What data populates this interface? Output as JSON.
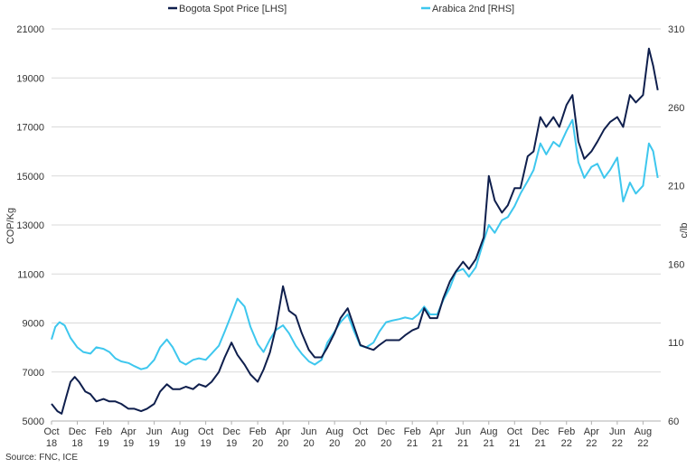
{
  "chart_data": {
    "type": "line",
    "xlabel": "",
    "ylabel_left": "COP/Kg",
    "ylabel_right": "c/lb",
    "ylim_left": [
      5000,
      21000
    ],
    "ylim_right": [
      60,
      310
    ],
    "yticks_left": [
      5000,
      7000,
      9000,
      11000,
      13000,
      15000,
      17000,
      19000,
      21000
    ],
    "yticks_right": [
      60,
      110,
      160,
      210,
      260,
      310
    ],
    "xticks": [
      {
        "m": "Oct",
        "y": "18"
      },
      {
        "m": "Dec",
        "y": "18"
      },
      {
        "m": "Feb",
        "y": "19"
      },
      {
        "m": "Apr",
        "y": "19"
      },
      {
        "m": "Jun",
        "y": "19"
      },
      {
        "m": "Aug",
        "y": "19"
      },
      {
        "m": "Oct",
        "y": "19"
      },
      {
        "m": "Dec",
        "y": "19"
      },
      {
        "m": "Feb",
        "y": "20"
      },
      {
        "m": "Apr",
        "y": "20"
      },
      {
        "m": "Jun",
        "y": "20"
      },
      {
        "m": "Aug",
        "y": "20"
      },
      {
        "m": "Oct",
        "y": "20"
      },
      {
        "m": "Dec",
        "y": "20"
      },
      {
        "m": "Feb",
        "y": "21"
      },
      {
        "m": "Apr",
        "y": "21"
      },
      {
        "m": "Jun",
        "y": "21"
      },
      {
        "m": "Aug",
        "y": "21"
      },
      {
        "m": "Oct",
        "y": "21"
      },
      {
        "m": "Dec",
        "y": "21"
      },
      {
        "m": "Feb",
        "y": "22"
      },
      {
        "m": "Apr",
        "y": "22"
      },
      {
        "m": "Jun",
        "y": "22"
      },
      {
        "m": "Aug",
        "y": "22"
      }
    ],
    "grid": true,
    "legend_position": "top-center",
    "series": [
      {
        "name": "Bogota Spot Price [LHS]",
        "axis": "left",
        "color": "#0f1f4d",
        "points": [
          [
            "2018-10-01",
            5700
          ],
          [
            "2018-10-15",
            5400
          ],
          [
            "2018-10-25",
            5300
          ],
          [
            "2018-11-05",
            6000
          ],
          [
            "2018-11-15",
            6600
          ],
          [
            "2018-11-25",
            6800
          ],
          [
            "2018-12-05",
            6600
          ],
          [
            "2018-12-20",
            6200
          ],
          [
            "2019-01-01",
            6100
          ],
          [
            "2019-01-15",
            5800
          ],
          [
            "2019-02-01",
            5900
          ],
          [
            "2019-02-15",
            5800
          ],
          [
            "2019-03-01",
            5800
          ],
          [
            "2019-03-15",
            5700
          ],
          [
            "2019-04-01",
            5500
          ],
          [
            "2019-04-15",
            5500
          ],
          [
            "2019-05-01",
            5400
          ],
          [
            "2019-05-15",
            5500
          ],
          [
            "2019-06-01",
            5700
          ],
          [
            "2019-06-15",
            6200
          ],
          [
            "2019-07-01",
            6500
          ],
          [
            "2019-07-15",
            6300
          ],
          [
            "2019-08-01",
            6300
          ],
          [
            "2019-08-15",
            6400
          ],
          [
            "2019-09-01",
            6300
          ],
          [
            "2019-09-15",
            6500
          ],
          [
            "2019-10-01",
            6400
          ],
          [
            "2019-10-15",
            6600
          ],
          [
            "2019-11-01",
            7000
          ],
          [
            "2019-11-15",
            7600
          ],
          [
            "2019-12-01",
            8200
          ],
          [
            "2019-12-15",
            7700
          ],
          [
            "2020-01-01",
            7300
          ],
          [
            "2020-01-15",
            6900
          ],
          [
            "2020-02-01",
            6600
          ],
          [
            "2020-02-15",
            7100
          ],
          [
            "2020-03-01",
            7800
          ],
          [
            "2020-03-15",
            8800
          ],
          [
            "2020-04-01",
            10500
          ],
          [
            "2020-04-15",
            9500
          ],
          [
            "2020-05-01",
            9300
          ],
          [
            "2020-05-15",
            8600
          ],
          [
            "2020-06-01",
            7900
          ],
          [
            "2020-06-15",
            7600
          ],
          [
            "2020-07-01",
            7600
          ],
          [
            "2020-07-15",
            8000
          ],
          [
            "2020-08-01",
            8600
          ],
          [
            "2020-08-15",
            9200
          ],
          [
            "2020-09-01",
            9600
          ],
          [
            "2020-09-15",
            8900
          ],
          [
            "2020-10-01",
            8100
          ],
          [
            "2020-10-15",
            8000
          ],
          [
            "2020-11-01",
            7900
          ],
          [
            "2020-11-15",
            8100
          ],
          [
            "2020-12-01",
            8300
          ],
          [
            "2020-12-15",
            8300
          ],
          [
            "2021-01-01",
            8300
          ],
          [
            "2021-01-15",
            8500
          ],
          [
            "2021-02-01",
            8700
          ],
          [
            "2021-02-15",
            8800
          ],
          [
            "2021-03-01",
            9600
          ],
          [
            "2021-03-15",
            9200
          ],
          [
            "2021-04-01",
            9200
          ],
          [
            "2021-04-15",
            10000
          ],
          [
            "2021-05-01",
            10700
          ],
          [
            "2021-05-15",
            11100
          ],
          [
            "2021-06-01",
            11500
          ],
          [
            "2021-06-15",
            11200
          ],
          [
            "2021-07-01",
            11600
          ],
          [
            "2021-07-20",
            12500
          ],
          [
            "2021-08-01",
            15000
          ],
          [
            "2021-08-15",
            14000
          ],
          [
            "2021-09-01",
            13500
          ],
          [
            "2021-09-15",
            13800
          ],
          [
            "2021-10-01",
            14500
          ],
          [
            "2021-10-15",
            14500
          ],
          [
            "2021-11-01",
            15800
          ],
          [
            "2021-11-15",
            16000
          ],
          [
            "2021-12-01",
            17400
          ],
          [
            "2021-12-15",
            17000
          ],
          [
            "2022-01-01",
            17400
          ],
          [
            "2022-01-15",
            17000
          ],
          [
            "2022-02-01",
            17900
          ],
          [
            "2022-02-15",
            18300
          ],
          [
            "2022-03-01",
            16400
          ],
          [
            "2022-03-15",
            15700
          ],
          [
            "2022-04-01",
            16000
          ],
          [
            "2022-04-15",
            16400
          ],
          [
            "2022-05-01",
            16900
          ],
          [
            "2022-05-15",
            17200
          ],
          [
            "2022-06-01",
            17400
          ],
          [
            "2022-06-15",
            17000
          ],
          [
            "2022-07-01",
            18300
          ],
          [
            "2022-07-15",
            18000
          ],
          [
            "2022-08-01",
            18300
          ],
          [
            "2022-08-15",
            20200
          ],
          [
            "2022-08-25",
            19500
          ],
          [
            "2022-09-05",
            18500
          ]
        ]
      },
      {
        "name": "Arabica 2nd [RHS]",
        "axis": "right",
        "color": "#3ec7ee",
        "points": [
          [
            "2018-10-01",
            112
          ],
          [
            "2018-10-10",
            120
          ],
          [
            "2018-10-20",
            123
          ],
          [
            "2018-11-01",
            121
          ],
          [
            "2018-11-15",
            113
          ],
          [
            "2018-12-01",
            107
          ],
          [
            "2018-12-15",
            104
          ],
          [
            "2019-01-01",
            103
          ],
          [
            "2019-01-15",
            107
          ],
          [
            "2019-02-01",
            106
          ],
          [
            "2019-02-15",
            104
          ],
          [
            "2019-03-01",
            100
          ],
          [
            "2019-03-15",
            98
          ],
          [
            "2019-04-01",
            97
          ],
          [
            "2019-04-15",
            95
          ],
          [
            "2019-05-01",
            93
          ],
          [
            "2019-05-15",
            94
          ],
          [
            "2019-06-01",
            99
          ],
          [
            "2019-06-15",
            107
          ],
          [
            "2019-07-01",
            112
          ],
          [
            "2019-07-15",
            107
          ],
          [
            "2019-08-01",
            98
          ],
          [
            "2019-08-15",
            96
          ],
          [
            "2019-09-01",
            99
          ],
          [
            "2019-09-15",
            100
          ],
          [
            "2019-10-01",
            99
          ],
          [
            "2019-10-15",
            103
          ],
          [
            "2019-11-01",
            108
          ],
          [
            "2019-11-15",
            117
          ],
          [
            "2019-12-01",
            128
          ],
          [
            "2019-12-15",
            138
          ],
          [
            "2020-01-01",
            133
          ],
          [
            "2020-01-15",
            120
          ],
          [
            "2020-02-01",
            109
          ],
          [
            "2020-02-15",
            104
          ],
          [
            "2020-03-01",
            112
          ],
          [
            "2020-03-15",
            118
          ],
          [
            "2020-04-01",
            121
          ],
          [
            "2020-04-15",
            116
          ],
          [
            "2020-05-01",
            108
          ],
          [
            "2020-05-15",
            103
          ],
          [
            "2020-06-01",
            98
          ],
          [
            "2020-06-15",
            96
          ],
          [
            "2020-07-01",
            99
          ],
          [
            "2020-07-15",
            110
          ],
          [
            "2020-08-01",
            117
          ],
          [
            "2020-08-15",
            123
          ],
          [
            "2020-09-01",
            128
          ],
          [
            "2020-09-15",
            118
          ],
          [
            "2020-10-01",
            108
          ],
          [
            "2020-10-15",
            107
          ],
          [
            "2020-11-01",
            110
          ],
          [
            "2020-11-15",
            117
          ],
          [
            "2020-12-01",
            123
          ],
          [
            "2020-12-15",
            124
          ],
          [
            "2021-01-01",
            125
          ],
          [
            "2021-01-15",
            126
          ],
          [
            "2021-02-01",
            125
          ],
          [
            "2021-02-15",
            128
          ],
          [
            "2021-03-01",
            133
          ],
          [
            "2021-03-15",
            128
          ],
          [
            "2021-04-01",
            128
          ],
          [
            "2021-04-15",
            137
          ],
          [
            "2021-05-01",
            145
          ],
          [
            "2021-05-15",
            155
          ],
          [
            "2021-06-01",
            157
          ],
          [
            "2021-06-15",
            152
          ],
          [
            "2021-07-01",
            158
          ],
          [
            "2021-07-20",
            175
          ],
          [
            "2021-08-01",
            185
          ],
          [
            "2021-08-15",
            180
          ],
          [
            "2021-09-01",
            188
          ],
          [
            "2021-09-15",
            190
          ],
          [
            "2021-10-01",
            197
          ],
          [
            "2021-10-15",
            205
          ],
          [
            "2021-11-01",
            213
          ],
          [
            "2021-11-15",
            220
          ],
          [
            "2021-12-01",
            237
          ],
          [
            "2021-12-15",
            230
          ],
          [
            "2022-01-01",
            238
          ],
          [
            "2022-01-15",
            235
          ],
          [
            "2022-02-01",
            245
          ],
          [
            "2022-02-15",
            252
          ],
          [
            "2022-03-01",
            225
          ],
          [
            "2022-03-15",
            215
          ],
          [
            "2022-04-01",
            222
          ],
          [
            "2022-04-15",
            224
          ],
          [
            "2022-05-01",
            215
          ],
          [
            "2022-05-15",
            220
          ],
          [
            "2022-06-01",
            228
          ],
          [
            "2022-06-15",
            200
          ],
          [
            "2022-07-01",
            212
          ],
          [
            "2022-07-15",
            205
          ],
          [
            "2022-08-01",
            210
          ],
          [
            "2022-08-15",
            237
          ],
          [
            "2022-08-25",
            232
          ],
          [
            "2022-09-05",
            215
          ]
        ]
      }
    ]
  },
  "source": "Source: FNC, ICE"
}
